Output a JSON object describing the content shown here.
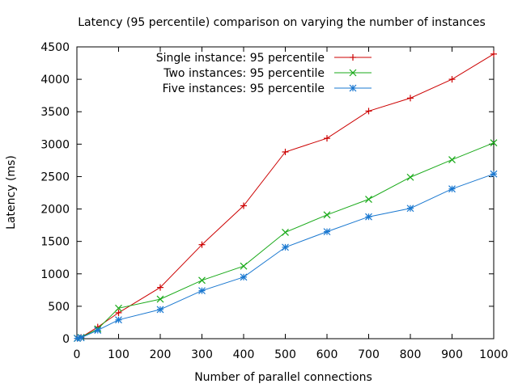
{
  "chart_data": {
    "type": "line",
    "title": "Latency (95 percentile) comparison on varying the number of instances",
    "xlabel": "Number of parallel connections",
    "ylabel": "Latency (ms)",
    "x": [
      1,
      10,
      50,
      100,
      200,
      300,
      400,
      500,
      600,
      700,
      800,
      900,
      1000
    ],
    "xlim": [
      0,
      1000
    ],
    "ylim": [
      0,
      4500
    ],
    "xticks": [
      0,
      100,
      200,
      300,
      400,
      500,
      600,
      700,
      800,
      900,
      1000
    ],
    "yticks": [
      0,
      500,
      1000,
      1500,
      2000,
      2500,
      3000,
      3500,
      4000,
      4500
    ],
    "xtick_labels": [
      "0",
      "100",
      "200",
      "300",
      "400",
      "500",
      "600",
      "700",
      "800",
      "900",
      "1000"
    ],
    "ytick_labels": [
      "0",
      "500",
      "1000",
      "1500",
      "2000",
      "2500",
      "3000",
      "3500",
      "4000",
      "4500"
    ],
    "grid": false,
    "legend_position": "top-left",
    "series": [
      {
        "name": "Single instance: 95 percentile",
        "color": "#cc0000",
        "marker": "plus",
        "values": [
          5,
          20,
          180,
          400,
          790,
          1450,
          2050,
          2880,
          3090,
          3510,
          3710,
          4000,
          4390
        ]
      },
      {
        "name": "Two instances: 95 percentile",
        "color": "#1aaa1a",
        "marker": "cross",
        "values": [
          5,
          20,
          150,
          470,
          610,
          900,
          1120,
          1640,
          1910,
          2150,
          2490,
          2760,
          3020
        ]
      },
      {
        "name": "Five instances: 95 percentile",
        "color": "#1a78d0",
        "marker": "star",
        "values": [
          5,
          15,
          130,
          290,
          450,
          740,
          950,
          1410,
          1650,
          1880,
          2010,
          2310,
          2540
        ]
      }
    ]
  }
}
